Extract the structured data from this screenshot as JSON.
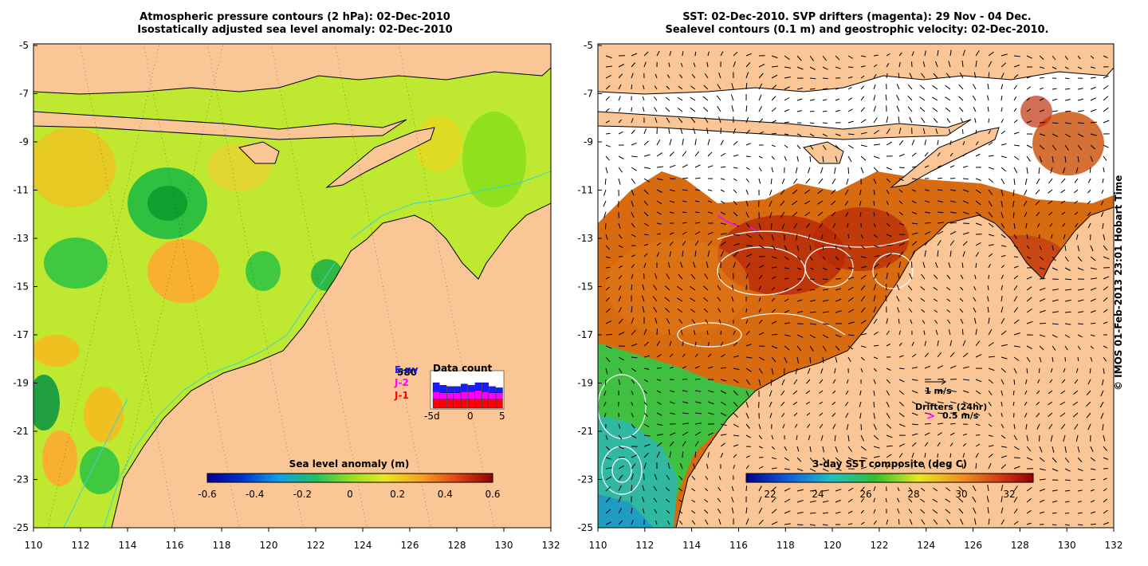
{
  "left_panel": {
    "title_line1": "Atmospheric pressure contours (2 hPa): 02-Dec-2010",
    "title_line2": "Isostatically adjusted sea level anomaly: 02-Dec-2010",
    "colorbar": {
      "label": "Sea level anomaly (m)",
      "ticks": [
        "-0.6",
        "-0.4",
        "-0.2",
        "0",
        "0.2",
        "0.4",
        "0.6"
      ]
    },
    "data_count": {
      "title": "Data count",
      "satellites": [
        {
          "name": "E-nv",
          "color": "#1a1aff"
        },
        {
          "name": "J-2",
          "color": "#ff00ff"
        },
        {
          "name": "J-1",
          "color": "#ff0000"
        }
      ],
      "overlay_label": "580",
      "x_ticks": [
        "-5d",
        "0",
        "5"
      ],
      "bars_j1": [
        0.35,
        0.35,
        0.35,
        0.35,
        0.35,
        0.35,
        0.35,
        0.35,
        0.35,
        0.35
      ],
      "bars_j2": [
        0.3,
        0.25,
        0.25,
        0.25,
        0.3,
        0.3,
        0.35,
        0.3,
        0.25,
        0.25
      ],
      "bars_env": [
        0.35,
        0.3,
        0.25,
        0.25,
        0.3,
        0.25,
        0.3,
        0.35,
        0.25,
        0.2
      ]
    }
  },
  "right_panel": {
    "title_line1": "SST: 02-Dec-2010. SVP drifters (magenta): 29 Nov - 04 Dec.",
    "title_line2": "Sealevel contours (0.1 m) and geostrophic velocity: 02-Dec-2010.",
    "colorbar": {
      "label": "3-day SST composite (deg C)",
      "ticks": [
        "22",
        "24",
        "26",
        "28",
        "30",
        "32"
      ]
    },
    "legend": {
      "velocity_scale": "1 m/s",
      "drifters_title": "Drifters (24hr)",
      "drifters_symbol": ">",
      "drifters_scale": "0.5 m/s"
    }
  },
  "axes": {
    "lat_ticks": [
      "-5",
      "-7",
      "-9",
      "-11",
      "-13",
      "-15",
      "-17",
      "-19",
      "-21",
      "-23",
      "-25"
    ],
    "lon_ticks": [
      "110",
      "112",
      "114",
      "116",
      "118",
      "120",
      "122",
      "124",
      "126",
      "128",
      "130",
      "132"
    ]
  },
  "credit": "© IMOS 01-Feb-2013 23:01 Hobart Time",
  "colors": {
    "land": "#fbc696",
    "ocean_sla": "#bfe830",
    "ocean_sst": "#d86a10",
    "coast": "#000000",
    "bathymetry": "#30d8d8"
  }
}
